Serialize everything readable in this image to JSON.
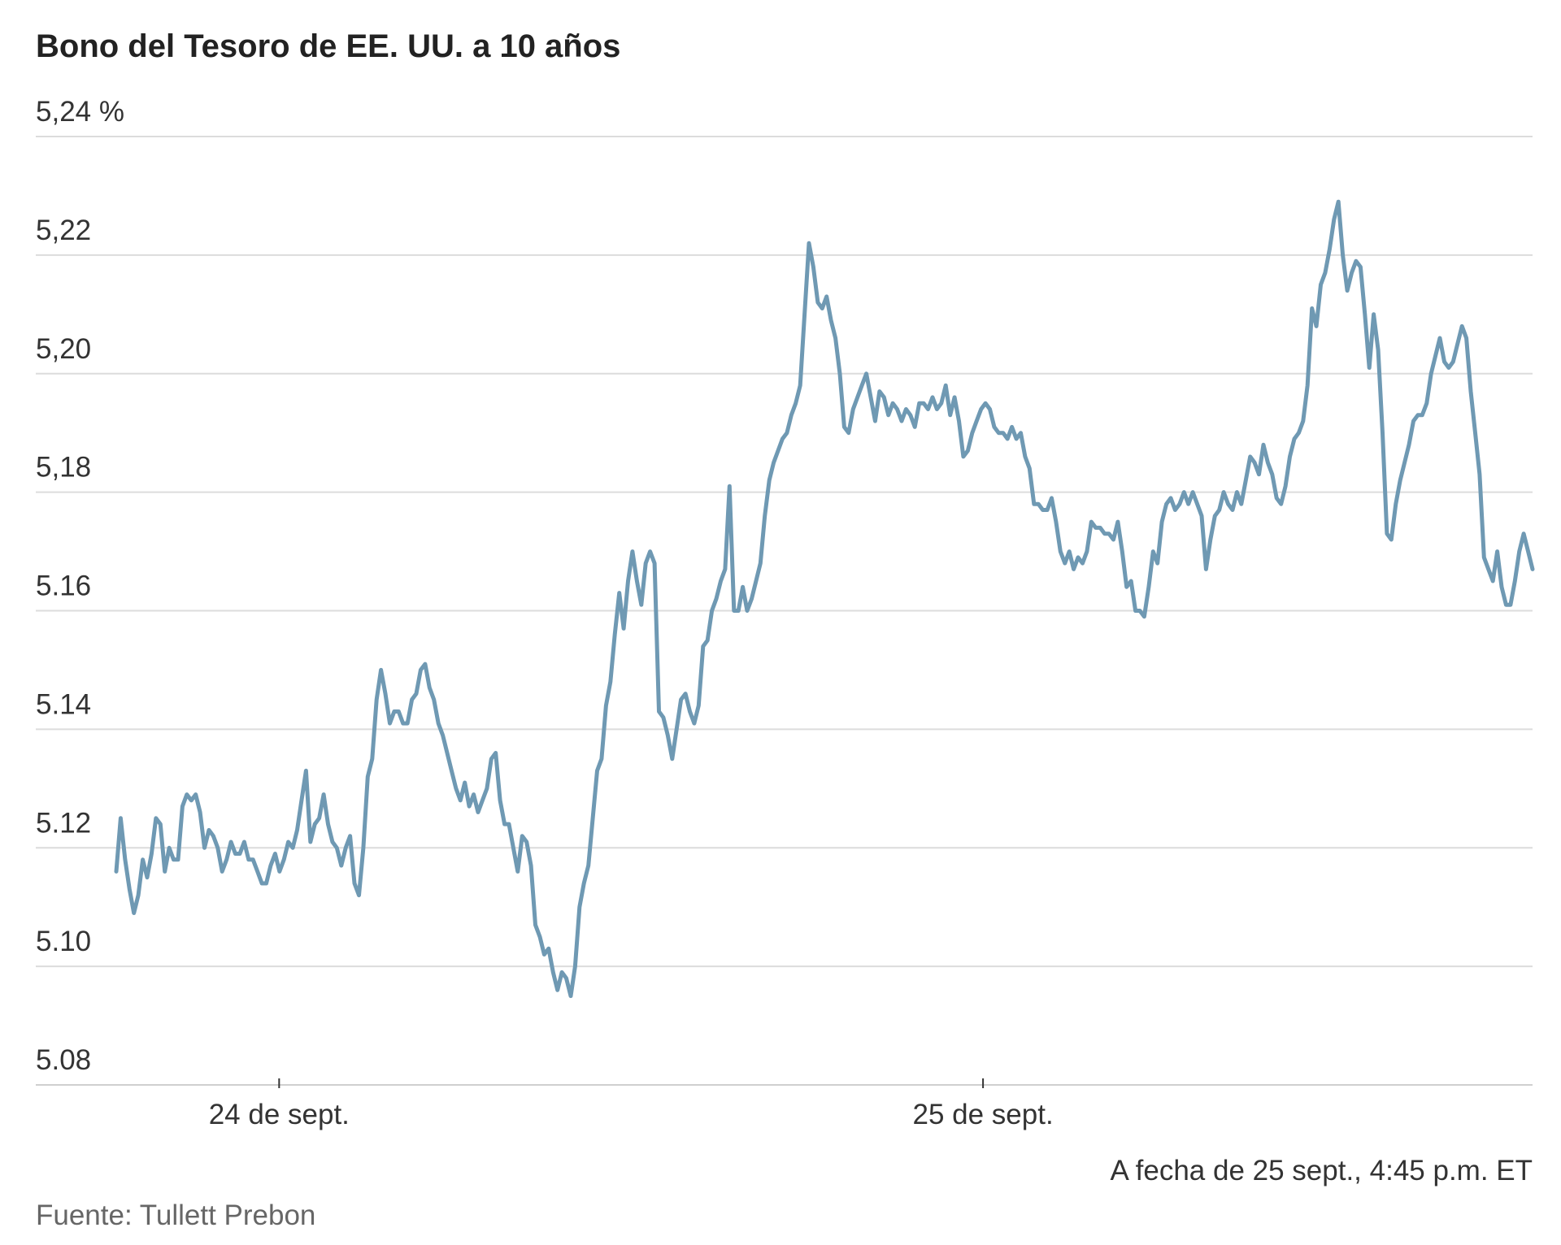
{
  "colors": {
    "series": "#6f99b3",
    "grid": "#dcdcdc",
    "text": "#333333",
    "source": "#666666"
  },
  "chart_data": {
    "type": "line",
    "title": "Bono del Tesoro de EE. UU. a 10 años",
    "xlabel": "",
    "ylabel": "",
    "ylim": [
      5.08,
      5.24
    ],
    "y_ticks": [
      {
        "value": 5.24,
        "label": "5,24 %"
      },
      {
        "value": 5.22,
        "label": "5,22"
      },
      {
        "value": 5.2,
        "label": "5,20"
      },
      {
        "value": 5.18,
        "label": "5,18"
      },
      {
        "value": 5.16,
        "label": "5.16"
      },
      {
        "value": 5.14,
        "label": "5.14"
      },
      {
        "value": 5.12,
        "label": "5.12"
      },
      {
        "value": 5.1,
        "label": "5.10"
      },
      {
        "value": 5.08,
        "label": "5.08"
      }
    ],
    "x_ticks": [
      {
        "position": 0.115,
        "label": "24 de sept."
      },
      {
        "position": 0.612,
        "label": "25 de sept."
      }
    ],
    "grid": true,
    "note": "A fecha de 25 sept., 4:45 p.m. ET",
    "source": "Fuente: Tullett Prebon",
    "series": [
      {
        "values": [
          5.116,
          5.125,
          5.118,
          5.113,
          5.109,
          5.112,
          5.118,
          5.115,
          5.119,
          5.125,
          5.124,
          5.116,
          5.12,
          5.118,
          5.118,
          5.127,
          5.129,
          5.128,
          5.129,
          5.126,
          5.12,
          5.123,
          5.122,
          5.12,
          5.116,
          5.118,
          5.121,
          5.119,
          5.119,
          5.121,
          5.118,
          5.118,
          5.116,
          5.114,
          5.114,
          5.117,
          5.119,
          5.116,
          5.118,
          5.121,
          5.12,
          5.123,
          5.128,
          5.133,
          5.121,
          5.124,
          5.125,
          5.129,
          5.124,
          5.121,
          5.12,
          5.117,
          5.12,
          5.122,
          5.114,
          5.112,
          5.12,
          5.132,
          5.135,
          5.145,
          5.15,
          5.146,
          5.141,
          5.143,
          5.143,
          5.141,
          5.141,
          5.145,
          5.146,
          5.15,
          5.151,
          5.147,
          5.145,
          5.141,
          5.139,
          5.136,
          5.133,
          5.13,
          5.128,
          5.131,
          5.127,
          5.129,
          5.126,
          5.128,
          5.13,
          5.135,
          5.136,
          5.128,
          5.124,
          5.124,
          5.12,
          5.116,
          5.122,
          5.121,
          5.117,
          5.107,
          5.105,
          5.102,
          5.103,
          5.099,
          5.096,
          5.099,
          5.098,
          5.095,
          5.1,
          5.11,
          5.114,
          5.117,
          5.125,
          5.133,
          5.135,
          5.144,
          5.148,
          5.156,
          5.163,
          5.157,
          5.165,
          5.17,
          5.165,
          5.161,
          5.168,
          5.17,
          5.168,
          5.143,
          5.142,
          5.139,
          5.135,
          5.14,
          5.145,
          5.146,
          5.143,
          5.141,
          5.144,
          5.154,
          5.155,
          5.16,
          5.162,
          5.165,
          5.167,
          5.181,
          5.16,
          5.16,
          5.164,
          5.16,
          5.162,
          5.165,
          5.168,
          5.176,
          5.182,
          5.185,
          5.187,
          5.189,
          5.19,
          5.193,
          5.195,
          5.198,
          5.21,
          5.222,
          5.218,
          5.212,
          5.211,
          5.213,
          5.209,
          5.206,
          5.2,
          5.191,
          5.19,
          5.194,
          5.196,
          5.198,
          5.2,
          5.196,
          5.192,
          5.197,
          5.196,
          5.193,
          5.195,
          5.194,
          5.192,
          5.194,
          5.193,
          5.191,
          5.195,
          5.195,
          5.194,
          5.196,
          5.194,
          5.195,
          5.198,
          5.193,
          5.196,
          5.192,
          5.186,
          5.187,
          5.19,
          5.192,
          5.194,
          5.195,
          5.194,
          5.191,
          5.19,
          5.19,
          5.189,
          5.191,
          5.189,
          5.19,
          5.186,
          5.184,
          5.178,
          5.178,
          5.177,
          5.177,
          5.179,
          5.175,
          5.17,
          5.168,
          5.17,
          5.167,
          5.169,
          5.168,
          5.17,
          5.175,
          5.174,
          5.174,
          5.173,
          5.173,
          5.172,
          5.175,
          5.17,
          5.164,
          5.165,
          5.16,
          5.16,
          5.159,
          5.164,
          5.17,
          5.168,
          5.175,
          5.178,
          5.179,
          5.177,
          5.178,
          5.18,
          5.178,
          5.18,
          5.178,
          5.176,
          5.167,
          5.172,
          5.176,
          5.177,
          5.18,
          5.178,
          5.177,
          5.18,
          5.178,
          5.182,
          5.186,
          5.185,
          5.183,
          5.188,
          5.185,
          5.183,
          5.179,
          5.178,
          5.181,
          5.186,
          5.189,
          5.19,
          5.192,
          5.198,
          5.211,
          5.208,
          5.215,
          5.217,
          5.221,
          5.226,
          5.229,
          5.22,
          5.214,
          5.217,
          5.219,
          5.218,
          5.21,
          5.201,
          5.21,
          5.204,
          5.19,
          5.173,
          5.172,
          5.178,
          5.182,
          5.185,
          5.188,
          5.192,
          5.193,
          5.193,
          5.195,
          5.2,
          5.203,
          5.206,
          5.202,
          5.201,
          5.202,
          5.205,
          5.208,
          5.206,
          5.197,
          5.19,
          5.183,
          5.169,
          5.167,
          5.165,
          5.17,
          5.164,
          5.161,
          5.161,
          5.165,
          5.17,
          5.173,
          5.17,
          5.167
        ]
      }
    ]
  }
}
